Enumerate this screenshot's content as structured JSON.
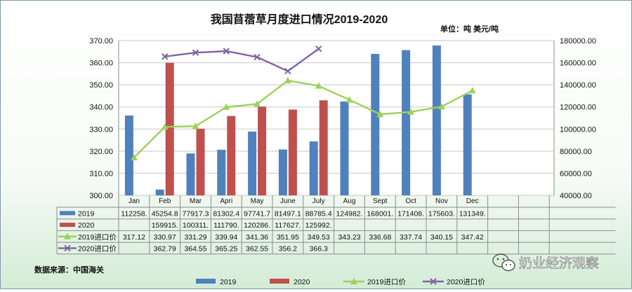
{
  "chart_data": {
    "type": "bar+line",
    "title": "我国苜蓿草月度进口情况2019-2020",
    "unit_label": "单位：吨 美元/吨",
    "source": "数据来源：中国海关",
    "watermark": "奶业经济观察",
    "categories": [
      "Jan",
      "Feb",
      "Mar",
      "Apri",
      "May",
      "June",
      "July",
      "Aug",
      "Sept",
      "Oct",
      "Nov",
      "Dec"
    ],
    "left_axis": {
      "min": 300,
      "max": 370,
      "step": 10,
      "ticks": [
        "300.00",
        "310.00",
        "320.00",
        "330.00",
        "340.00",
        "350.00",
        "360.00",
        "370.00"
      ]
    },
    "right_axis": {
      "min": 40000,
      "max": 180000,
      "step": 20000,
      "ticks": [
        "40000.00",
        "60000.00",
        "80000.00",
        "100000.00",
        "120000.00",
        "140000.00",
        "160000.00",
        "180000.00"
      ]
    },
    "grid": true,
    "legend_position": "bottom",
    "series": [
      {
        "name": "2019",
        "type": "bar",
        "axis": "right",
        "color": "#4f81bd",
        "values": [
          112258,
          45254.8,
          77917.3,
          81302.4,
          97741.7,
          81497.1,
          88785.4,
          124982,
          168001,
          171408,
          175603,
          131349
        ],
        "labels": [
          "112258.",
          "45254.8",
          "77917.3",
          "81302.4",
          "97741.7",
          "81497.1",
          "88785.4",
          "124982.",
          "168001.",
          "171408.",
          "175603.",
          "131349."
        ]
      },
      {
        "name": "2020",
        "type": "bar",
        "axis": "right",
        "color": "#c0504d",
        "values": [
          null,
          159915,
          100311,
          111790,
          120286,
          117627,
          125992,
          null,
          null,
          null,
          null,
          null
        ],
        "labels": [
          "",
          "159915.",
          "100311.",
          "111790.",
          "120286.",
          "117627.",
          "125992.",
          "",
          "",
          "",
          "",
          ""
        ]
      },
      {
        "name": "2019进口价",
        "type": "line",
        "axis": "left",
        "color": "#9bd25a",
        "marker": "triangle",
        "values": [
          317.12,
          330.97,
          331.29,
          339.94,
          341.36,
          351.95,
          349.53,
          343.23,
          336.68,
          337.74,
          340.15,
          347.42
        ],
        "labels": [
          "317.12",
          "330.97",
          "331.29",
          "339.94",
          "341.36",
          "351.95",
          "349.53",
          "343.23",
          "336.68",
          "337.74",
          "340.15",
          "347.42"
        ]
      },
      {
        "name": "2020进口价",
        "type": "line",
        "axis": "left",
        "color": "#8064a2",
        "marker": "x",
        "values": [
          null,
          362.79,
          364.55,
          365.25,
          362.55,
          356.2,
          366.3,
          null,
          null,
          null,
          null,
          null
        ],
        "labels": [
          "",
          "362.79",
          "364.55",
          "365.25",
          "362.55",
          "356.2",
          "366.3",
          "",
          "",
          "",
          "",
          ""
        ]
      }
    ]
  }
}
